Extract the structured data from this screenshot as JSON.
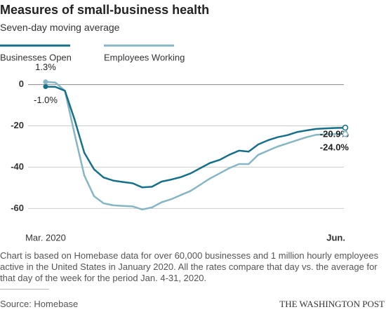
{
  "chart_data": {
    "type": "line",
    "title": "Measures of small-business health",
    "subtitle": "Seven-day moving average",
    "categories": [
      "Mar. 2020",
      null,
      null,
      null,
      null,
      null,
      null,
      null,
      null,
      null,
      null,
      null,
      null,
      null,
      null,
      null,
      null,
      null,
      null,
      null,
      null,
      null,
      null,
      null,
      null,
      null,
      null,
      null,
      null,
      null,
      null,
      "Jun."
    ],
    "series": [
      {
        "name": "Businesses Open",
        "color": "#16708a",
        "values": [
          -1.0,
          -1.1,
          -3,
          -17,
          -33,
          -41,
          -45,
          -46.5,
          -47.2,
          -47.8,
          -49.8,
          -49.5,
          -47,
          -46,
          -44.8,
          -43,
          -40.5,
          -38,
          -36.5,
          -34,
          -32,
          -32.5,
          -29,
          -27,
          -25.5,
          -24.5,
          -23,
          -22.2,
          -21.5,
          -21.2,
          -21,
          -20.9
        ],
        "value_labels": [
          "-1.0%",
          null,
          null,
          null,
          null,
          null,
          null,
          null,
          null,
          null,
          null,
          null,
          null,
          null,
          null,
          null,
          null,
          null,
          null,
          null,
          null,
          null,
          null,
          null,
          null,
          null,
          null,
          null,
          null,
          null,
          null,
          "-20.9%"
        ]
      },
      {
        "name": "Employees Working",
        "color": "#86b6c4",
        "values": [
          1.3,
          1,
          -3,
          -24,
          -44,
          -54,
          -57.5,
          -58.5,
          -58.8,
          -59,
          -60.5,
          -59.5,
          -57,
          -55.5,
          -53.5,
          -51.5,
          -48.5,
          -45.5,
          -43,
          -40.5,
          -38.5,
          -38.5,
          -34,
          -32,
          -30,
          -28.5,
          -27,
          -25.5,
          -24.3,
          -24.1,
          -24,
          -24.0
        ],
        "value_labels": [
          "1.3%",
          null,
          null,
          null,
          null,
          null,
          null,
          null,
          null,
          null,
          null,
          null,
          null,
          null,
          null,
          null,
          null,
          null,
          null,
          null,
          null,
          null,
          null,
          null,
          null,
          null,
          null,
          null,
          null,
          null,
          null,
          "-24.0%"
        ]
      }
    ],
    "ylim": [
      -66,
      7
    ],
    "yticks": [
      0,
      -20,
      -40,
      -60
    ],
    "grid": true,
    "note": "Chart is based on Homebase data for over 60,000 businesses and 1 million hourly employees active in the United States in January 2020. All the rates compare that day vs. the average for that day of the week for the period Jan. 4-31, 2020.",
    "source": "Source: Homebase",
    "credit": "THE WASHINGTON POST"
  }
}
